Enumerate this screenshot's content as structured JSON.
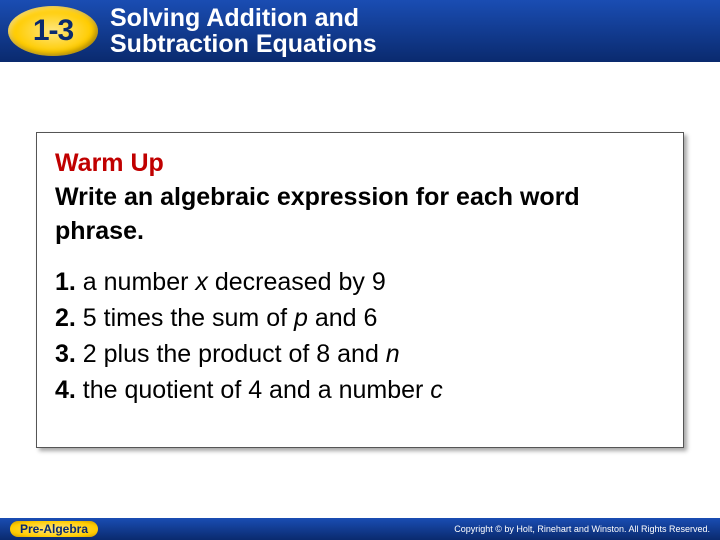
{
  "header": {
    "section_number": "1-3",
    "chapter_title_line1": "Solving Addition and",
    "chapter_title_line2": "Subtraction Equations",
    "badge_gradient": [
      "#ffe680",
      "#ffcc00",
      "#cc9900"
    ],
    "bg_gradient": [
      "#1a4db3",
      "#0a2a6e"
    ],
    "title_color": "#ffffff"
  },
  "warmup": {
    "title": "Warm Up",
    "title_color": "#c00000",
    "instructions": "Write an algebraic expression for each word phrase.",
    "box_border": "#555555",
    "font_size_pt": 19,
    "problems": [
      {
        "num": "1.",
        "pre": " a number ",
        "var": "x",
        "post": " decreased by 9"
      },
      {
        "num": "2.",
        "pre": " 5 times the sum of ",
        "var": "p",
        "post": " and 6"
      },
      {
        "num": "3.",
        "pre": " 2 plus the product of 8 and ",
        "var": "n",
        "post": ""
      },
      {
        "num": "4.",
        "pre": " the quotient of 4 and a number ",
        "var": "c",
        "post": ""
      }
    ]
  },
  "footer": {
    "left": "Pre-Algebra",
    "right": "Copyright © by Holt, Rinehart and Winston. All Rights Reserved."
  }
}
